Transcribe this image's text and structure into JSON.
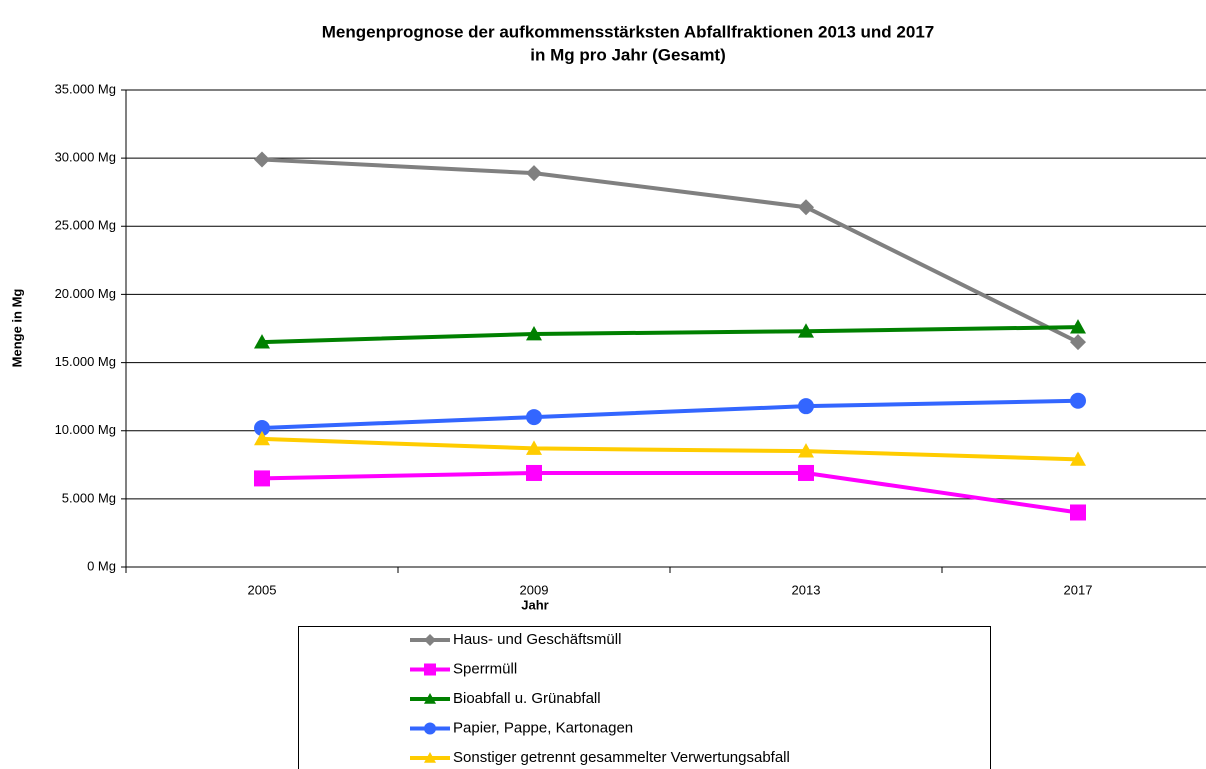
{
  "chart_data": {
    "type": "line",
    "title": [
      "Mengenprognose der aufkommensstärksten Abfallfraktionen 2013 und 2017",
      "in Mg pro Jahr (Gesamt)"
    ],
    "x_label": "Jahr",
    "y_label": "Menge in Mg",
    "categories": [
      "2005",
      "2009",
      "2013",
      "2017"
    ],
    "series": [
      {
        "name": "Haus- und Geschäftsmüll",
        "color": "#808080",
        "marker": "diamond",
        "values": [
          29900,
          28900,
          26400,
          16500
        ]
      },
      {
        "name": "Sperrmüll",
        "color": "#ff00ff",
        "marker": "square",
        "values": [
          6500,
          6900,
          6900,
          4000
        ]
      },
      {
        "name": "Bioabfall u. Grünabfall",
        "color": "#008000",
        "marker": "triangle",
        "values": [
          16500,
          17100,
          17300,
          17600
        ]
      },
      {
        "name": "Papier, Pappe, Kartonagen",
        "color": "#3366ff",
        "marker": "circle",
        "values": [
          10200,
          11000,
          11800,
          12200
        ]
      },
      {
        "name": "Sonstiger getrennt gesammelter Verwertungsabfall",
        "color": "#ffcc00",
        "marker": "triangle",
        "values": [
          9400,
          8700,
          8500,
          7900
        ]
      }
    ],
    "ylim": [
      0,
      35000
    ],
    "yticks": [
      {
        "value": 0,
        "label": "0 Mg"
      },
      {
        "value": 5000,
        "label": "5.000 Mg"
      },
      {
        "value": 10000,
        "label": "10.000 Mg"
      },
      {
        "value": 15000,
        "label": "15.000 Mg"
      },
      {
        "value": 20000,
        "label": "20.000 Mg"
      },
      {
        "value": 25000,
        "label": "25.000 Mg"
      },
      {
        "value": 30000,
        "label": "30.000 Mg"
      },
      {
        "value": 35000,
        "label": "35.000 Mg"
      }
    ],
    "grid": true,
    "legend": "bottom"
  }
}
